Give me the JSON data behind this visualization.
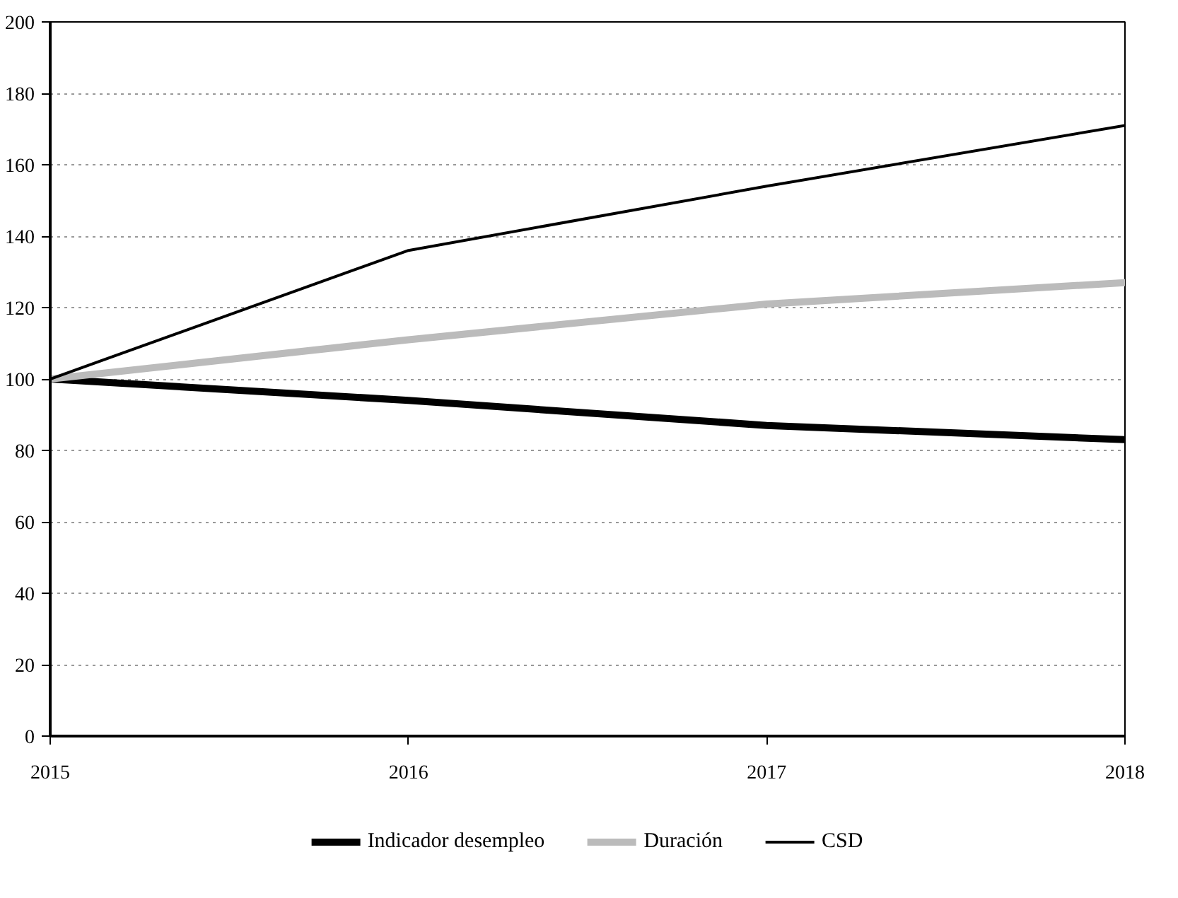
{
  "chart_data": {
    "type": "line",
    "x": [
      2015,
      2016,
      2017,
      2018
    ],
    "xlim": [
      2015,
      2018
    ],
    "xticks": [
      2015,
      2016,
      2017,
      2018
    ],
    "ylim": [
      0,
      200
    ],
    "yticks": [
      0,
      20,
      40,
      60,
      80,
      100,
      120,
      140,
      160,
      180,
      200
    ],
    "grid": "y",
    "legend": "bottom",
    "line_style": "solid",
    "series": [
      {
        "name": "Indicador desempleo",
        "color": "#000000",
        "values": [
          100,
          94,
          87,
          83
        ]
      },
      {
        "name": "Duración",
        "color": "#bbbbbb",
        "values": [
          100,
          111,
          121,
          127
        ]
      },
      {
        "name": "CSD",
        "color": "#000000",
        "values": [
          100,
          136,
          154,
          171
        ]
      }
    ]
  }
}
